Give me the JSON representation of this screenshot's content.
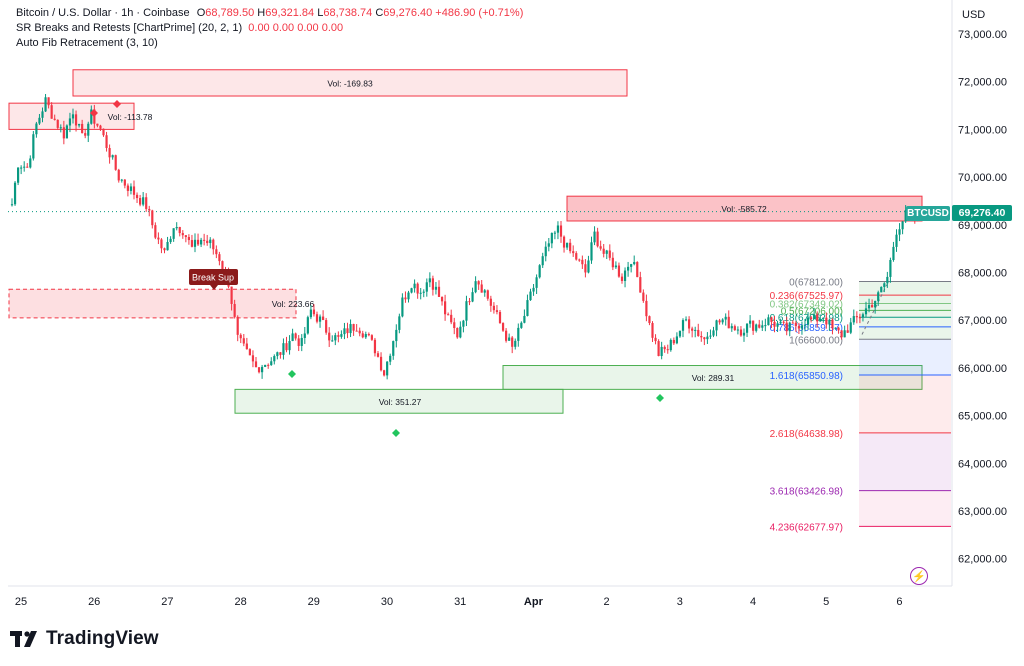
{
  "legend": {
    "title": "Bitcoin / U.S. Dollar · 1h · Coinbase",
    "open_label": "O",
    "open": "68,789.50",
    "high_label": "H",
    "high": "69,321.84",
    "low_label": "L",
    "low": "68,738.74",
    "close_label": "C",
    "close": "69,276.40",
    "change": "+486.90 (+0.71%)",
    "indicator1": "SR Breaks and Retests [ChartPrime] (20, 2, 1)",
    "indicator1_values": [
      "0.00",
      "0.00",
      "0.00",
      "0.00"
    ],
    "indicator2": "Auto Fib Retracement (3, 10)"
  },
  "currency": "USD",
  "symbol_badge": "BTCUSD",
  "last_price": "69,276.40",
  "logo_text": "TradingView",
  "colors": {
    "up": "#089981",
    "down": "#f23645",
    "badge": "#26a69a"
  },
  "chart_data": {
    "type": "candlestick",
    "y_ticks": [
      "73,000.00",
      "72,000.00",
      "71,000.00",
      "70,000.00",
      "69,000.00",
      "68,000.00",
      "67,000.00",
      "66,000.00",
      "65,000.00",
      "64,000.00",
      "63,000.00",
      "62,000.00"
    ],
    "y_tick_values": [
      73000,
      72000,
      71000,
      70000,
      69000,
      68000,
      67000,
      66000,
      65000,
      64000,
      63000,
      62000
    ],
    "x_ticks": [
      "25",
      "26",
      "27",
      "28",
      "29",
      "30",
      "31",
      "Apr",
      "2",
      "3",
      "4",
      "5",
      "6"
    ],
    "ylim": [
      61800,
      73200
    ],
    "series": [
      {
        "day": 0,
        "values": [
          69000,
          70300,
          70200,
          71100,
          71600,
          71200,
          70900,
          71400,
          70800
        ]
      },
      {
        "day": 1,
        "values": [
          70800,
          71300,
          71000,
          70500,
          70000,
          69800,
          69600,
          69400,
          68800
        ]
      },
      {
        "day": 2,
        "values": [
          68800,
          68400,
          69000,
          68900,
          68500,
          68700,
          68600,
          68300,
          67800
        ]
      },
      {
        "day": 3,
        "values": [
          67800,
          66600,
          66300,
          66000,
          66100,
          66200,
          66400,
          66700,
          66500
        ]
      },
      {
        "day": 4,
        "values": [
          66500,
          67200,
          67000,
          66700,
          66600,
          66800,
          66900,
          66700,
          66400
        ]
      },
      {
        "day": 5,
        "values": [
          66400,
          65900,
          66600,
          67400,
          67800,
          67600,
          67900,
          67500,
          67000
        ]
      },
      {
        "day": 6,
        "values": [
          67000,
          66700,
          67300,
          67900,
          67600,
          67200,
          66800,
          66400,
          66900
        ]
      },
      {
        "day": 7,
        "values": [
          66900,
          67500,
          68100,
          68600,
          68900,
          68500,
          68300,
          68000,
          68800
        ]
      },
      {
        "day": 8,
        "values": [
          68800,
          68400,
          68200,
          67900,
          68300,
          67700,
          66900,
          66300,
          66400
        ]
      },
      {
        "day": 9,
        "values": [
          66400,
          66700,
          67000,
          66800,
          66600,
          66900,
          67000,
          66900,
          66800
        ]
      },
      {
        "day": 10,
        "values": [
          66800,
          66900,
          66900,
          67000,
          66900,
          66800,
          66900,
          67000,
          67000
        ]
      },
      {
        "day": 11,
        "values": [
          67000,
          67100,
          66800,
          66700,
          66900,
          67100,
          67300,
          67500,
          67900
        ]
      },
      {
        "day": 12,
        "values": [
          67900,
          68900,
          69200,
          69100,
          69276
        ]
      }
    ],
    "sr_zones": [
      {
        "label": "Vol: -169.83",
        "top": 72250,
        "bottom": 71700
      },
      {
        "label": "Vol: -113.78",
        "top": 71550,
        "bottom": 71000
      },
      {
        "label": "Vol: 223.66",
        "top": 67650,
        "bottom": 67050
      },
      {
        "label": "Vol: 351.27",
        "top": 65550,
        "bottom": 65050
      },
      {
        "label": "Vol: -585.72",
        "top": 69600,
        "bottom": 69080
      },
      {
        "label": "Vol: 289.31",
        "top": 66050,
        "bottom": 65550
      }
    ],
    "break_label": "Break Sup",
    "fib_levels": [
      {
        "label": "0(67812.00)",
        "value": 67812.0,
        "color": "#787b86"
      },
      {
        "label": "0.236(67525.97)",
        "value": 67525.97,
        "color": "#f23645"
      },
      {
        "label": "0.382(67349.02)",
        "value": 67349.02,
        "color": "#81c784"
      },
      {
        "label": "0.5(67206.00)",
        "value": 67206.0,
        "color": "#4caf50"
      },
      {
        "label": "0.618(67062.98)",
        "value": 67062.98,
        "color": "#089981"
      },
      {
        "label": "0.786(66859.37)",
        "value": 66859.37,
        "color": "#2962ff"
      },
      {
        "label": "1(66600.00)",
        "value": 66600.0,
        "color": "#787b86"
      },
      {
        "label": "1.618(65850.98)",
        "value": 65850.98,
        "color": "#2962ff"
      },
      {
        "label": "2.618(64638.98)",
        "value": 64638.98,
        "color": "#f23645"
      },
      {
        "label": "3.618(63426.98)",
        "value": 63426.98,
        "color": "#9c27b0"
      },
      {
        "label": "4.236(62677.97)",
        "value": 62677.97,
        "color": "#e91e63"
      }
    ]
  }
}
